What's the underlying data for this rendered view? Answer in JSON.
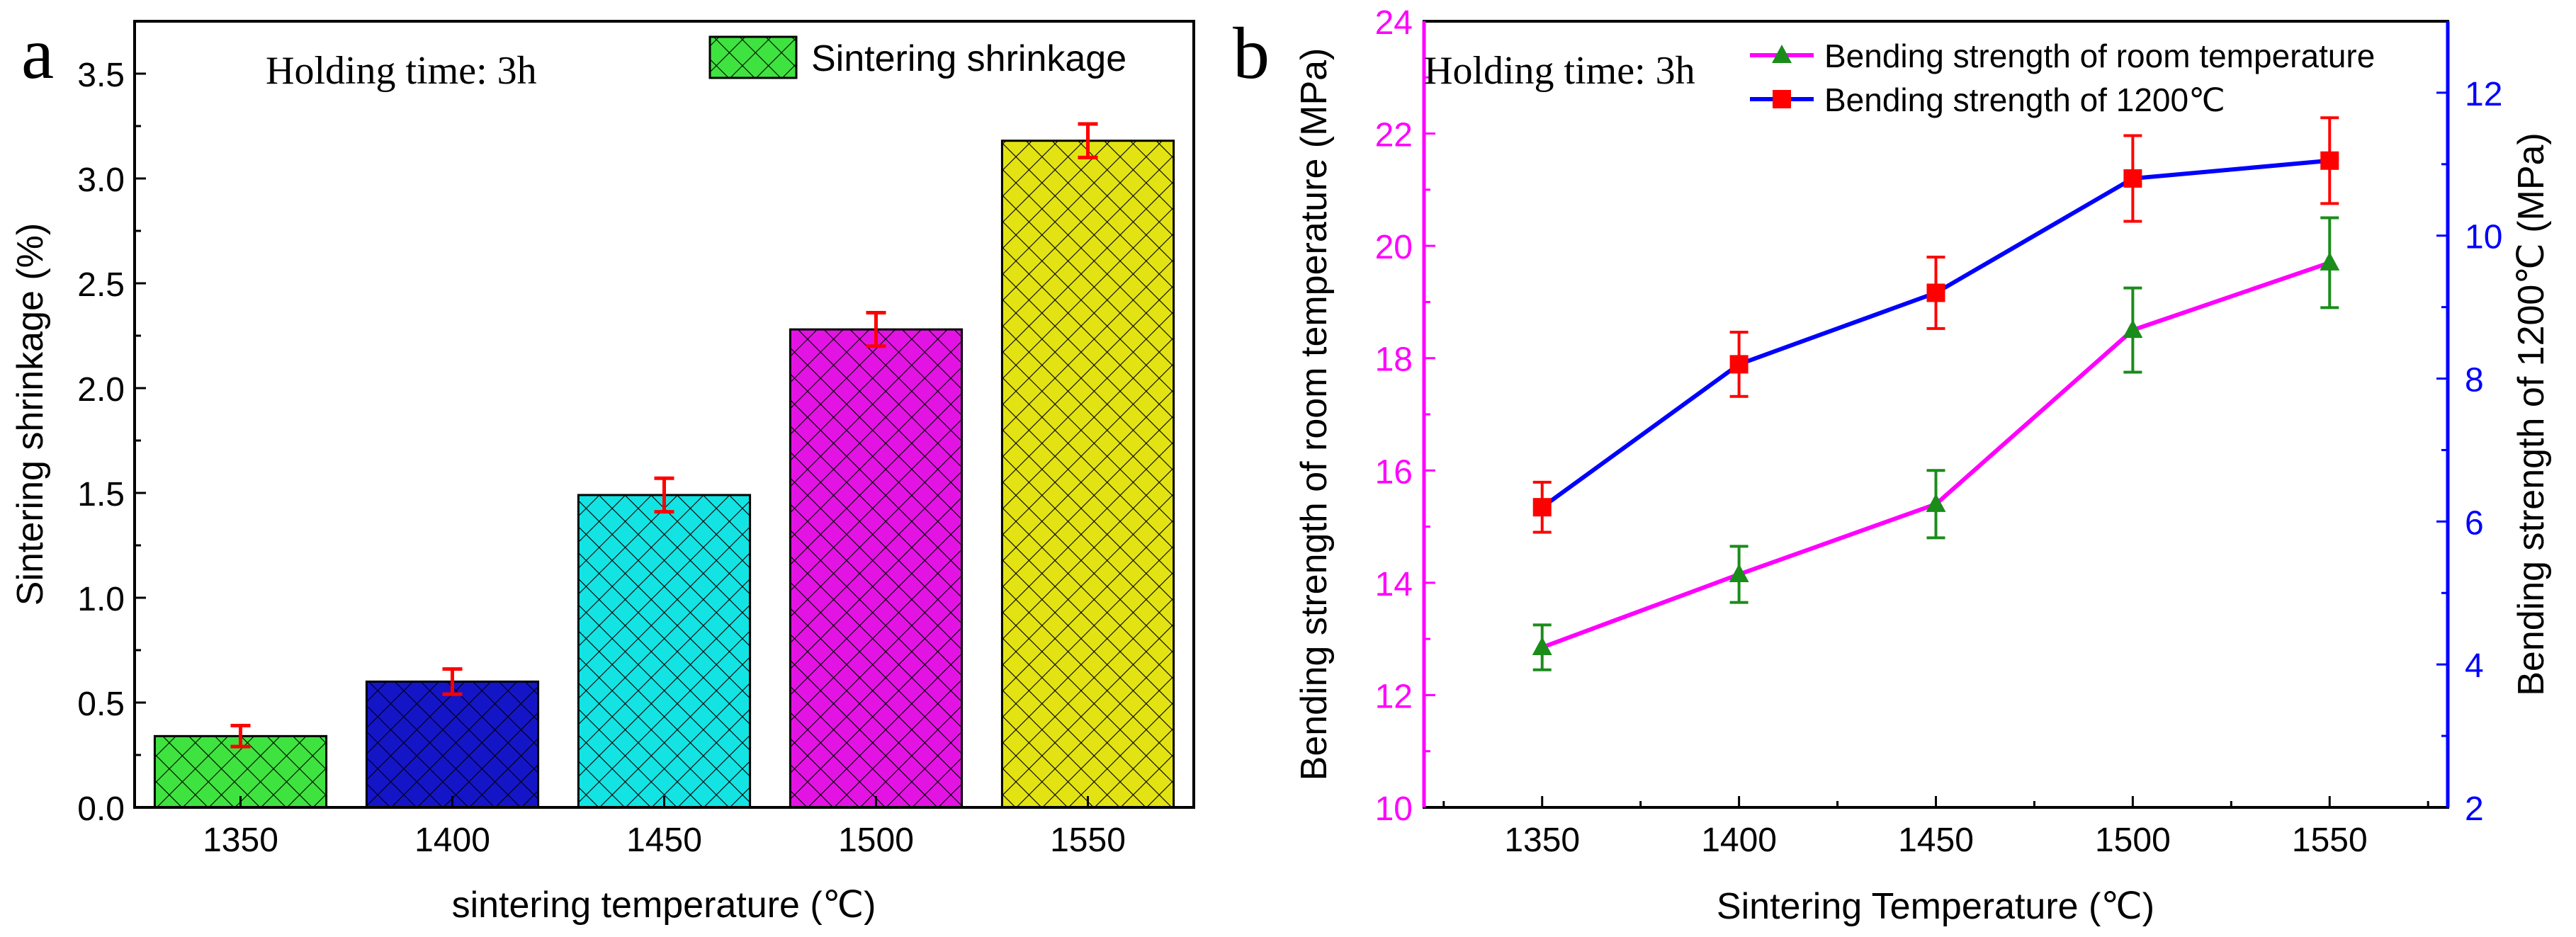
{
  "chart_data": [
    {
      "panel": "a",
      "type": "bar",
      "annotation": "Holding time: 3h",
      "xlabel": "sintering temperature (℃)",
      "ylabel": "Sintering shrinkage (%)",
      "categories": [
        "1350",
        "1400",
        "1450",
        "1500",
        "1550"
      ],
      "values": [
        0.34,
        0.6,
        1.49,
        2.28,
        3.18
      ],
      "errors": [
        0.05,
        0.06,
        0.08,
        0.08,
        0.08
      ],
      "ylim": [
        0,
        3.75
      ],
      "yticks": [
        "0.0",
        "0.5",
        "1.0",
        "1.5",
        "2.0",
        "2.5",
        "3.0",
        "3.5"
      ],
      "legend": {
        "label": "Sintering shrinkage",
        "position": "top-right"
      },
      "colors": {
        "bars": [
          "#3fe33f",
          "#1515c8",
          "#14e3e3",
          "#e314e3",
          "#e3e314"
        ],
        "error": "#ff0000"
      }
    },
    {
      "panel": "b",
      "type": "line",
      "annotation": "Holding time: 3h",
      "xlabel": "Sintering Temperature (℃)",
      "ylabel_left": "Bending strength of room temperature (MPa)",
      "ylabel_right": "Bending strength of 1200℃ (MPa)",
      "x": [
        1350,
        1400,
        1450,
        1500,
        1550
      ],
      "xlim": [
        1320,
        1580
      ],
      "xticks": [
        "1350",
        "1400",
        "1450",
        "1500",
        "1550"
      ],
      "ylim_left": [
        10,
        24
      ],
      "yticks_left": [
        "10",
        "12",
        "14",
        "16",
        "18",
        "20",
        "22",
        "24"
      ],
      "ylim_right": [
        2,
        13
      ],
      "yticks_right": [
        "2",
        "4",
        "6",
        "8",
        "10",
        "12"
      ],
      "legend_position": "top-right",
      "series": [
        {
          "name": "Bending strength of room temperature",
          "axis": "left",
          "values": [
            12.85,
            14.15,
            15.4,
            18.5,
            19.7
          ],
          "errors": [
            0.4,
            0.5,
            0.6,
            0.75,
            0.8
          ],
          "line_color": "#ff00ff",
          "marker_color": "#1a8c1a",
          "marker": "triangle"
        },
        {
          "name": "Bending strength of 1200℃",
          "axis": "right",
          "values": [
            6.2,
            8.2,
            9.2,
            10.8,
            11.05
          ],
          "errors": [
            0.35,
            0.45,
            0.5,
            0.6,
            0.6
          ],
          "line_color": "#0000ff",
          "marker_color": "#ff0000",
          "marker": "square"
        }
      ],
      "colors": {
        "left_axis": "#ff00ff",
        "right_axis": "#0000ff"
      }
    }
  ],
  "panel_labels": [
    "a",
    "b"
  ]
}
